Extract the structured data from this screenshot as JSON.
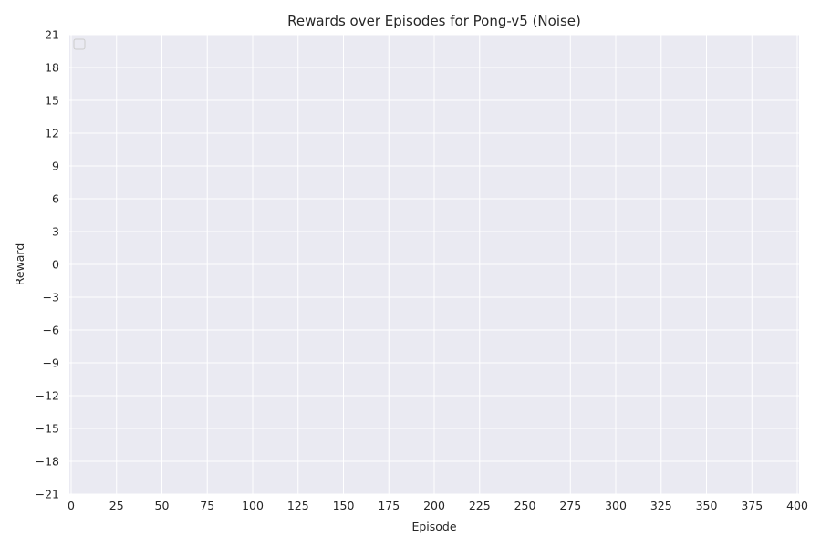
{
  "chart_data": {
    "type": "line",
    "title": "Rewards over Episodes for Pong-v5 (Noise)",
    "xlabel": "Episode",
    "ylabel": "Reward",
    "xlim": [
      -1,
      401
    ],
    "ylim": [
      -21,
      21
    ],
    "x_ticks": [
      0,
      25,
      50,
      75,
      100,
      125,
      150,
      175,
      200,
      225,
      250,
      275,
      300,
      325,
      350,
      375,
      400
    ],
    "y_ticks": [
      -21,
      -18,
      -15,
      -12,
      -9,
      -6,
      -3,
      0,
      3,
      6,
      9,
      12,
      15,
      18,
      21
    ],
    "x_tick_labels": [
      "0",
      "25",
      "50",
      "75",
      "100",
      "125",
      "150",
      "175",
      "200",
      "225",
      "250",
      "275",
      "300",
      "325",
      "350",
      "375",
      "400"
    ],
    "y_tick_labels": [
      "−21",
      "−18",
      "−15",
      "−12",
      "−9",
      "−6",
      "−3",
      "0",
      "3",
      "6",
      "9",
      "12",
      "15",
      "18",
      "21"
    ],
    "series": [],
    "grid": true,
    "legend_placement": "top-left",
    "background_color": "#eaeaf2",
    "grid_color": "#ffffff"
  }
}
